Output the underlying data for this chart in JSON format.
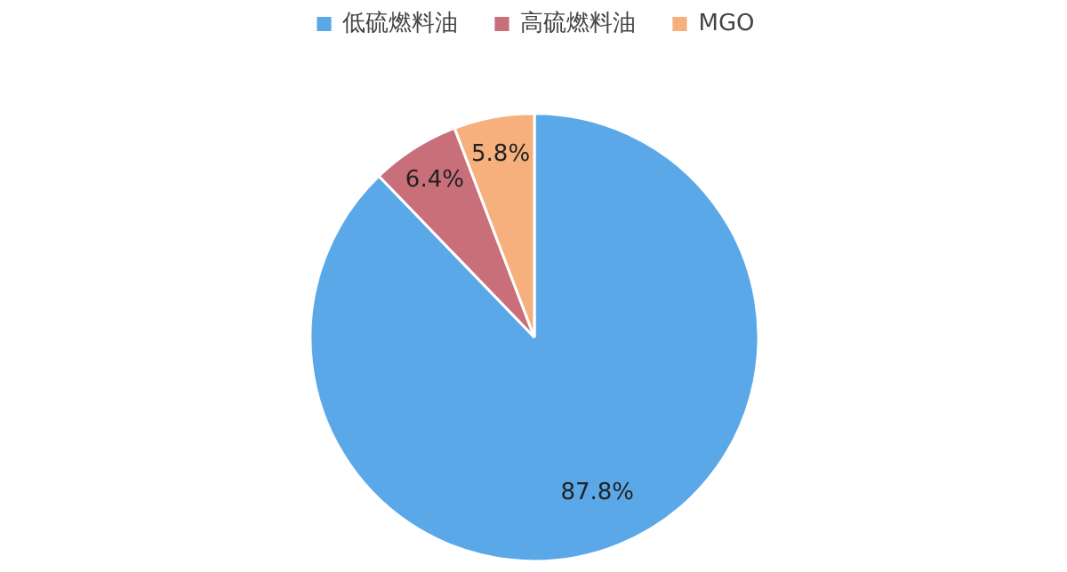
{
  "chart_data": {
    "type": "pie",
    "categories": [
      "低硫燃料油",
      "高硫燃料油",
      "MGO"
    ],
    "values": [
      87.8,
      6.4,
      5.8
    ],
    "colors": [
      "#5ba8e9",
      "#c96f7a",
      "#f6b07e"
    ],
    "value_labels": [
      "87.8%",
      "6.4%",
      "5.8%"
    ],
    "legend": "top"
  }
}
